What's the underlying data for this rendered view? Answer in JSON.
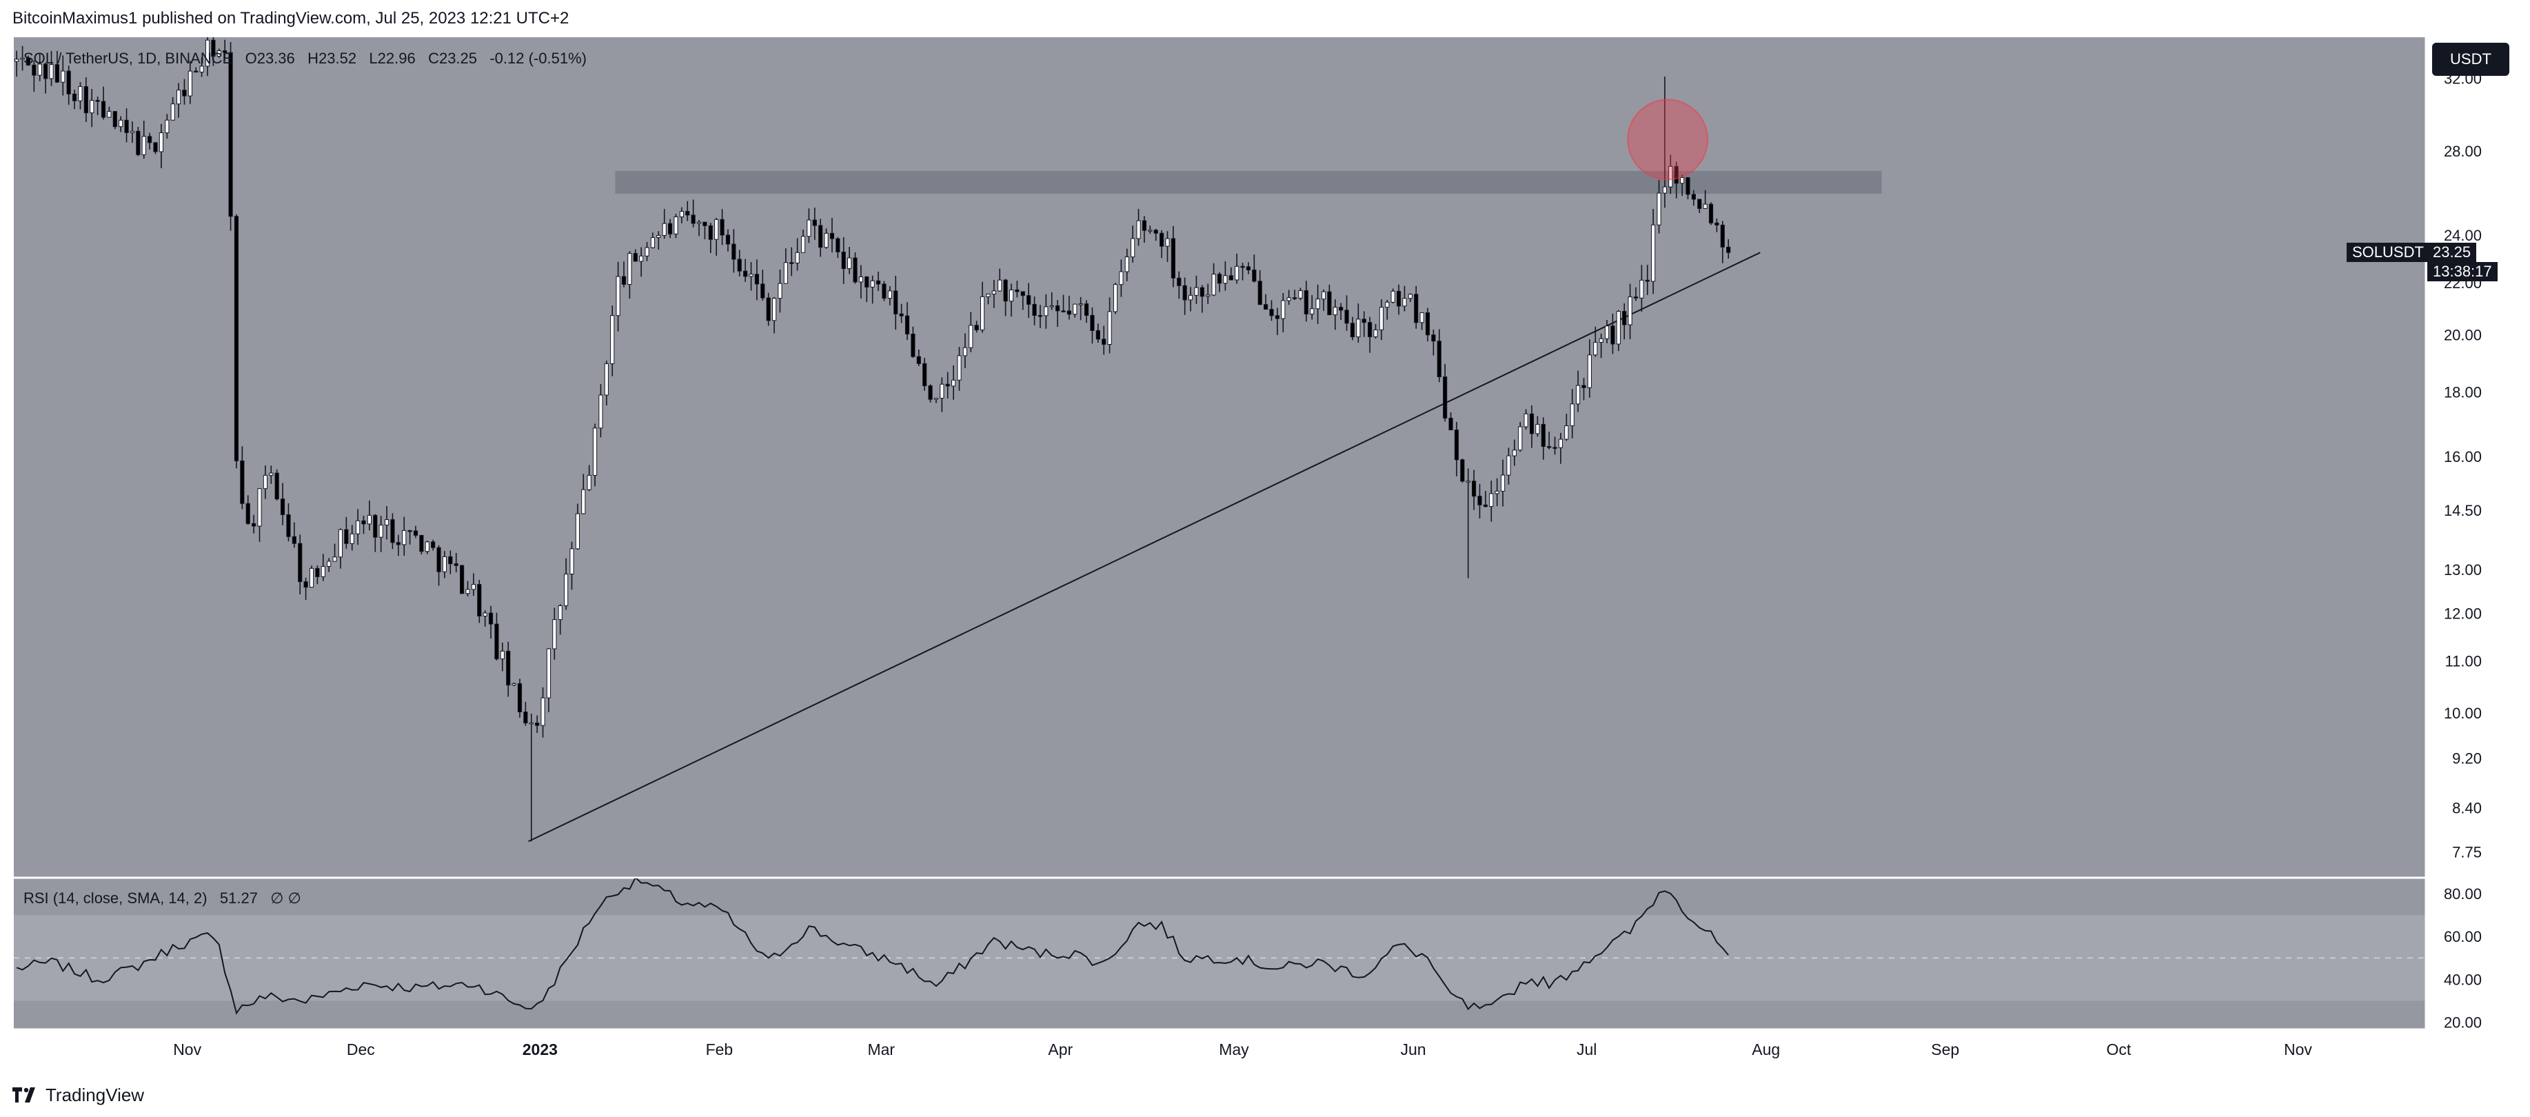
{
  "header": {
    "publisher_line": "BitcoinMaximus1 published on TradingView.com, Jul 25, 2023 12:21 UTC+2"
  },
  "legend": {
    "symbol": "SOL / TetherUS, 1D, BINANCE",
    "o_label": "O",
    "o_value": "23.36",
    "h_label": "H",
    "h_value": "23.52",
    "l_label": "L",
    "l_value": "22.96",
    "c_label": "C",
    "c_value": "23.25",
    "change": "-0.12 (-0.51%)"
  },
  "rsi_legend": {
    "label": "RSI (14, close, SMA, 14, 2)",
    "value": "51.27",
    "extra": "∅ ∅"
  },
  "currency_button": "USDT",
  "price_tag": {
    "symbol": "SOLUSDT",
    "price": "23.25",
    "countdown": "13:38:17"
  },
  "footer": {
    "brand": "TradingView",
    "logo_icon": "tradingview-logo-icon"
  },
  "colors": {
    "pane_bg": "#9598a1",
    "resistance_band": "#787b86",
    "highlight_circle": "#f23645",
    "candle_up": "#ffffff",
    "candle_down": "#000000"
  },
  "chart_data": [
    {
      "type": "candlestick",
      "title": "SOL / TetherUS, 1D, BINANCE",
      "y_scale": "log",
      "y_ticks": [
        "32.00",
        "28.00",
        "24.00",
        "22.00",
        "20.00",
        "18.00",
        "16.00",
        "14.50",
        "13.00",
        "12.00",
        "11.00",
        "10.00",
        "9.20",
        "8.40",
        "7.75"
      ],
      "x_ticks": [
        "Nov",
        "Dec",
        "2023",
        "Feb",
        "Mar",
        "Apr",
        "May",
        "Jun",
        "Jul",
        "Aug",
        "Sep",
        "Oct",
        "Nov"
      ],
      "x_range": [
        "2022-10-02",
        "2023-11-23"
      ],
      "ylim": [
        7.4,
        34.5
      ],
      "grid": false,
      "anchors": [
        [
          "2022-10-02",
          33.0
        ],
        [
          "2022-10-10",
          32.0
        ],
        [
          "2022-10-20",
          29.0
        ],
        [
          "2022-10-25",
          28.0
        ],
        [
          "2022-10-31",
          31.5
        ],
        [
          "2022-11-05",
          34.0
        ],
        [
          "2022-11-07",
          33.0
        ],
        [
          "2022-11-09",
          16.0
        ],
        [
          "2022-11-11",
          14.0
        ],
        [
          "2022-11-15",
          15.5
        ],
        [
          "2022-11-21",
          12.5
        ],
        [
          "2022-11-25",
          13.5
        ],
        [
          "2022-12-01",
          14.2
        ],
        [
          "2022-12-10",
          13.8
        ],
        [
          "2022-12-20",
          12.5
        ],
        [
          "2022-12-28",
          10.0
        ],
        [
          "2022-12-31",
          9.9
        ],
        [
          "2023-01-06",
          13.4
        ],
        [
          "2023-01-10",
          16.5
        ],
        [
          "2023-01-14",
          22.0
        ],
        [
          "2023-01-20",
          24.0
        ],
        [
          "2023-01-25",
          24.5
        ],
        [
          "2023-02-01",
          24.2
        ],
        [
          "2023-02-09",
          21.0
        ],
        [
          "2023-02-16",
          24.5
        ],
        [
          "2023-02-23",
          22.5
        ],
        [
          "2023-03-03",
          21.0
        ],
        [
          "2023-03-10",
          17.5
        ],
        [
          "2023-03-14",
          19.0
        ],
        [
          "2023-03-20",
          22.0
        ],
        [
          "2023-03-28",
          20.5
        ],
        [
          "2023-04-03",
          21.0
        ],
        [
          "2023-04-08",
          20.0
        ],
        [
          "2023-04-14",
          24.5
        ],
        [
          "2023-04-18",
          24.0
        ],
        [
          "2023-04-22",
          21.5
        ],
        [
          "2023-04-27",
          22.0
        ],
        [
          "2023-05-01",
          22.5
        ],
        [
          "2023-05-08",
          21.0
        ],
        [
          "2023-05-15",
          21.3
        ],
        [
          "2023-05-23",
          20.0
        ],
        [
          "2023-05-29",
          21.5
        ],
        [
          "2023-06-03",
          20.5
        ],
        [
          "2023-06-06",
          17.5
        ],
        [
          "2023-06-10",
          15.0
        ],
        [
          "2023-06-14",
          14.8
        ],
        [
          "2023-06-20",
          17.0
        ],
        [
          "2023-06-25",
          16.5
        ],
        [
          "2023-07-01",
          19.0
        ],
        [
          "2023-07-08",
          21.0
        ],
        [
          "2023-07-11",
          22.0
        ],
        [
          "2023-07-13",
          26.5
        ],
        [
          "2023-07-15",
          27.0
        ],
        [
          "2023-07-19",
          26.0
        ],
        [
          "2023-07-22",
          25.0
        ],
        [
          "2023-07-25",
          23.25
        ]
      ],
      "wick_extremes": [
        {
          "date": "2022-12-30",
          "low": 7.9
        },
        {
          "date": "2023-06-10",
          "low": 12.8
        },
        {
          "date": "2023-07-14",
          "high": 32.1
        }
      ],
      "resistance_zone": {
        "from": "2023-01-14",
        "to": "2023-08-21",
        "low": 25.9,
        "high": 27.0
      },
      "support_trendline": {
        "from": [
          "2022-12-30",
          7.9
        ],
        "to": [
          "2023-07-31",
          23.25
        ]
      },
      "highlight_circle": {
        "date": "2023-07-15",
        "price": 28.6
      },
      "last_price": 23.25
    },
    {
      "type": "line",
      "title": "RSI (14, close, SMA, 14, 2)",
      "y_ticks": [
        "80.00",
        "60.00",
        "40.00",
        "20.00"
      ],
      "ylim": [
        17,
        87
      ],
      "band": [
        30,
        70
      ],
      "midline": 50,
      "last_value": 51.27,
      "anchors": [
        [
          "2022-10-02",
          45
        ],
        [
          "2022-10-08",
          48
        ],
        [
          "2022-10-16",
          40
        ],
        [
          "2022-10-22",
          45
        ],
        [
          "2022-10-30",
          56
        ],
        [
          "2022-11-04",
          60
        ],
        [
          "2022-11-06",
          55
        ],
        [
          "2022-11-09",
          26
        ],
        [
          "2022-11-14",
          32
        ],
        [
          "2022-11-21",
          30
        ],
        [
          "2022-12-01",
          38
        ],
        [
          "2022-12-10",
          36
        ],
        [
          "2022-12-20",
          38
        ],
        [
          "2022-12-28",
          28
        ],
        [
          "2022-12-31",
          27
        ],
        [
          "2023-01-05",
          48
        ],
        [
          "2023-01-10",
          72
        ],
        [
          "2023-01-14",
          82
        ],
        [
          "2023-01-18",
          86
        ],
        [
          "2023-01-25",
          76
        ],
        [
          "2023-02-01",
          72
        ],
        [
          "2023-02-09",
          48
        ],
        [
          "2023-02-16",
          64
        ],
        [
          "2023-02-23",
          55
        ],
        [
          "2023-03-03",
          48
        ],
        [
          "2023-03-10",
          37
        ],
        [
          "2023-03-14",
          45
        ],
        [
          "2023-03-20",
          58
        ],
        [
          "2023-03-28",
          52
        ],
        [
          "2023-04-03",
          52
        ],
        [
          "2023-04-08",
          47
        ],
        [
          "2023-04-14",
          66
        ],
        [
          "2023-04-18",
          65
        ],
        [
          "2023-04-22",
          50
        ],
        [
          "2023-05-01",
          50
        ],
        [
          "2023-05-08",
          45
        ],
        [
          "2023-05-15",
          48
        ],
        [
          "2023-05-23",
          42
        ],
        [
          "2023-05-29",
          56
        ],
        [
          "2023-06-03",
          50
        ],
        [
          "2023-06-06",
          35
        ],
        [
          "2023-06-10",
          27
        ],
        [
          "2023-06-14",
          26
        ],
        [
          "2023-06-20",
          40
        ],
        [
          "2023-06-25",
          38
        ],
        [
          "2023-07-01",
          50
        ],
        [
          "2023-07-08",
          62
        ],
        [
          "2023-07-13",
          80
        ],
        [
          "2023-07-15",
          82
        ],
        [
          "2023-07-18",
          70
        ],
        [
          "2023-07-22",
          60
        ],
        [
          "2023-07-25",
          51.27
        ]
      ]
    }
  ]
}
